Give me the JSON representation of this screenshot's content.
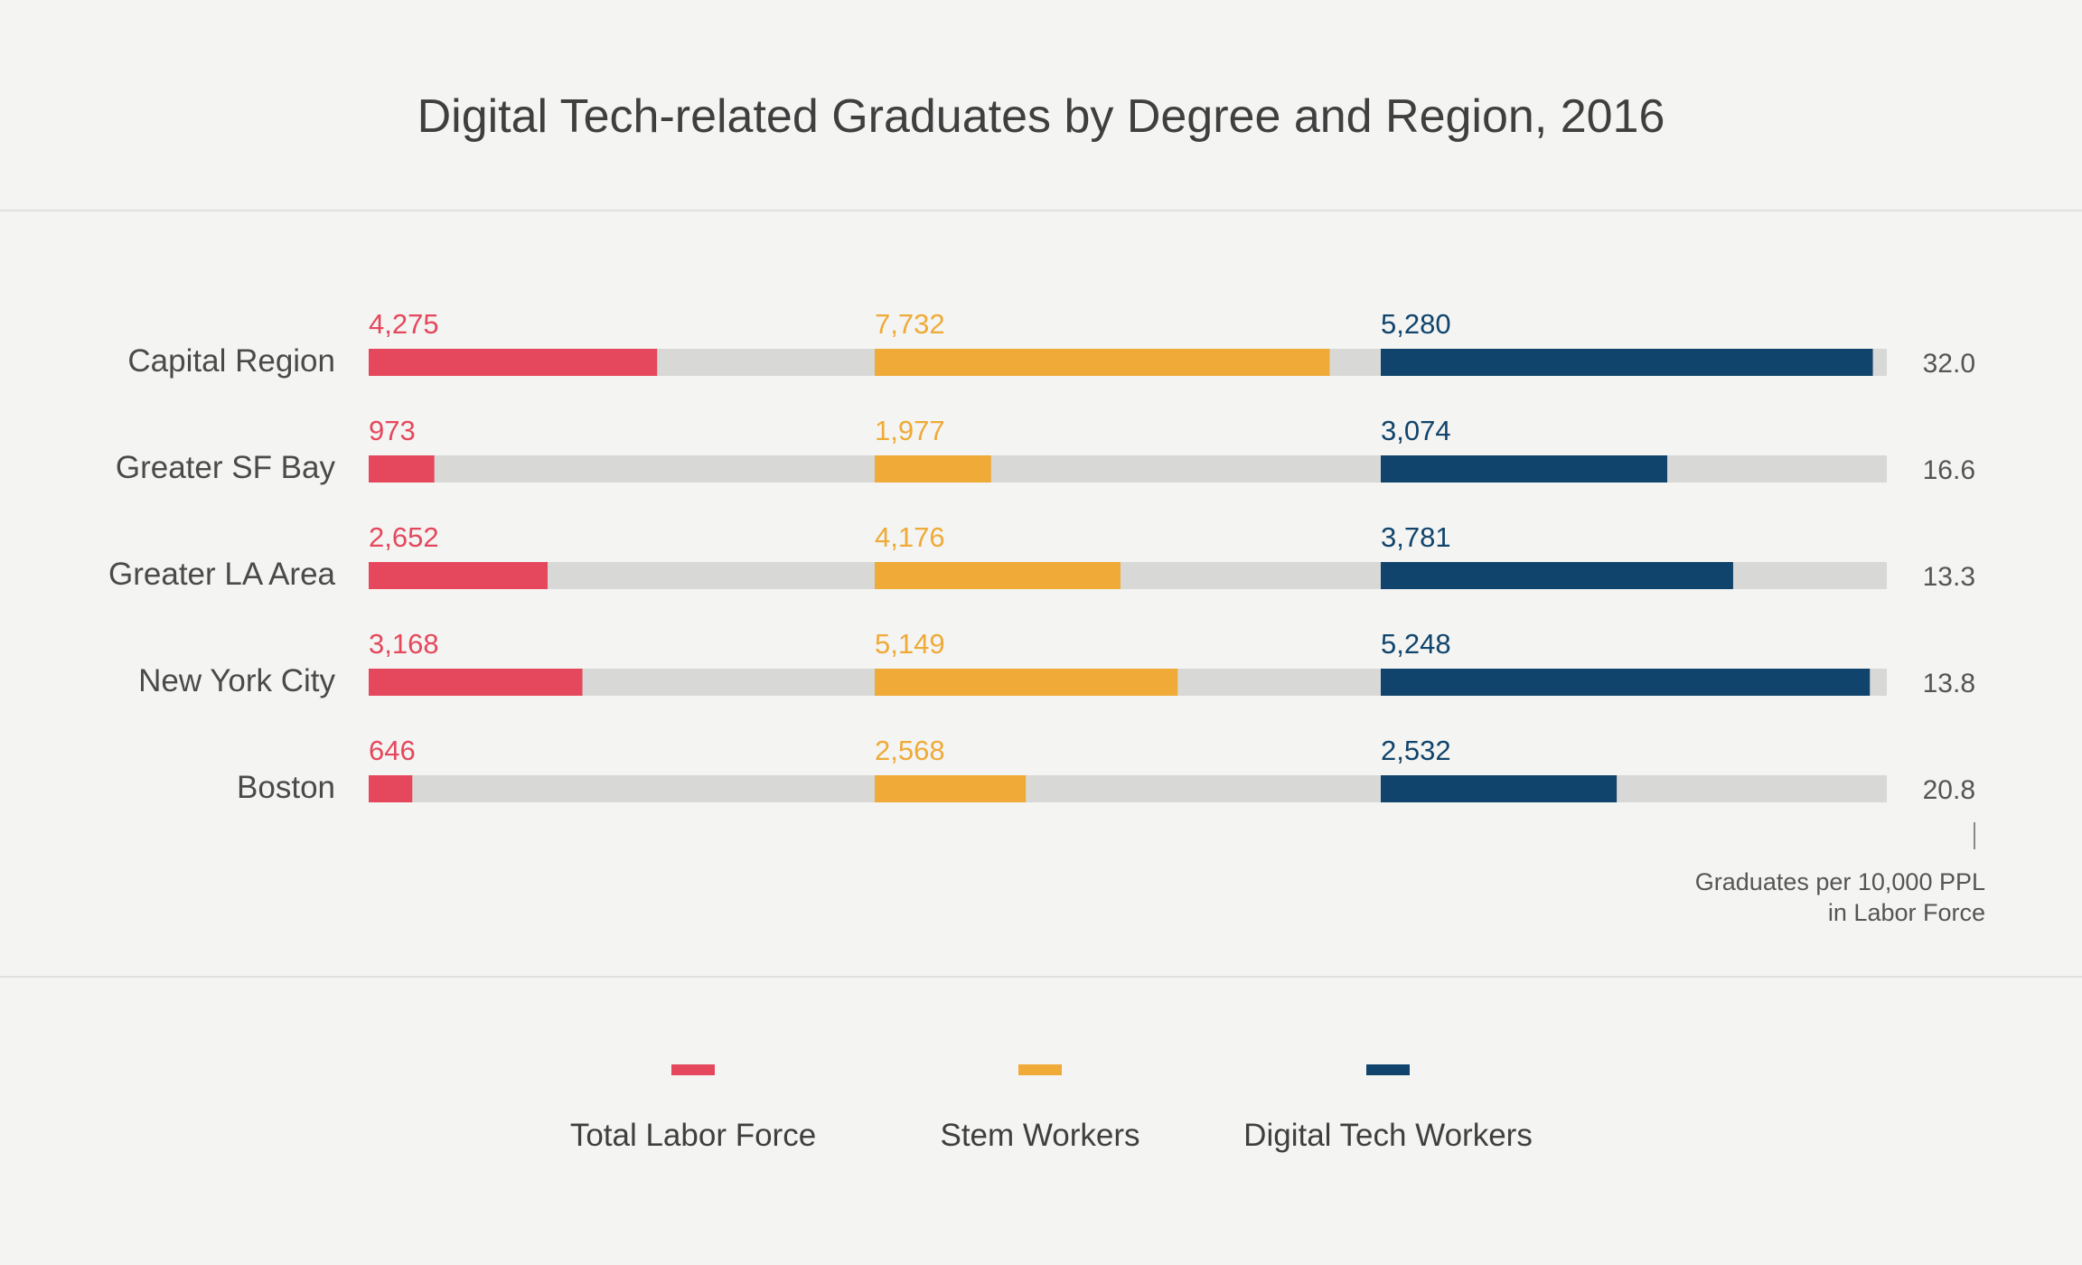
{
  "chart_data": {
    "type": "bar",
    "title": "Digital Tech-related Graduates by Degree and Region, 2016",
    "categories": [
      "Capital Region",
      "Greater SF Bay",
      "Greater LA Area",
      "New York City",
      "Boston"
    ],
    "series": [
      {
        "name": "Total Labor Force",
        "color": "#e5485d",
        "values": [
          4275,
          973,
          2652,
          3168,
          646
        ],
        "labels": [
          "4,275",
          "973",
          "2,652",
          "3,168",
          "646"
        ],
        "max": 7500
      },
      {
        "name": "Stem Workers",
        "color": "#efaa37",
        "values": [
          7732,
          1977,
          4176,
          5149,
          2568
        ],
        "labels": [
          "7,732",
          "1,977",
          "4,176",
          "5,149",
          "2,568"
        ],
        "max": 8600
      },
      {
        "name": "Digital Tech Workers",
        "color": "#10446c",
        "values": [
          5280,
          3074,
          3781,
          5248,
          2532
        ],
        "labels": [
          "5,280",
          "3,074",
          "3,781",
          "5,248",
          "2,532"
        ],
        "max": 5430
      }
    ],
    "rate": {
      "label_line1": "Graduates per 10,000 PPL",
      "label_line2": "in Labor Force",
      "values": [
        "32.0",
        "16.6",
        "13.3",
        "13.8",
        "20.8"
      ]
    },
    "track_color": "#d8d8d7",
    "legend_placement": "bottom",
    "grid": false
  }
}
